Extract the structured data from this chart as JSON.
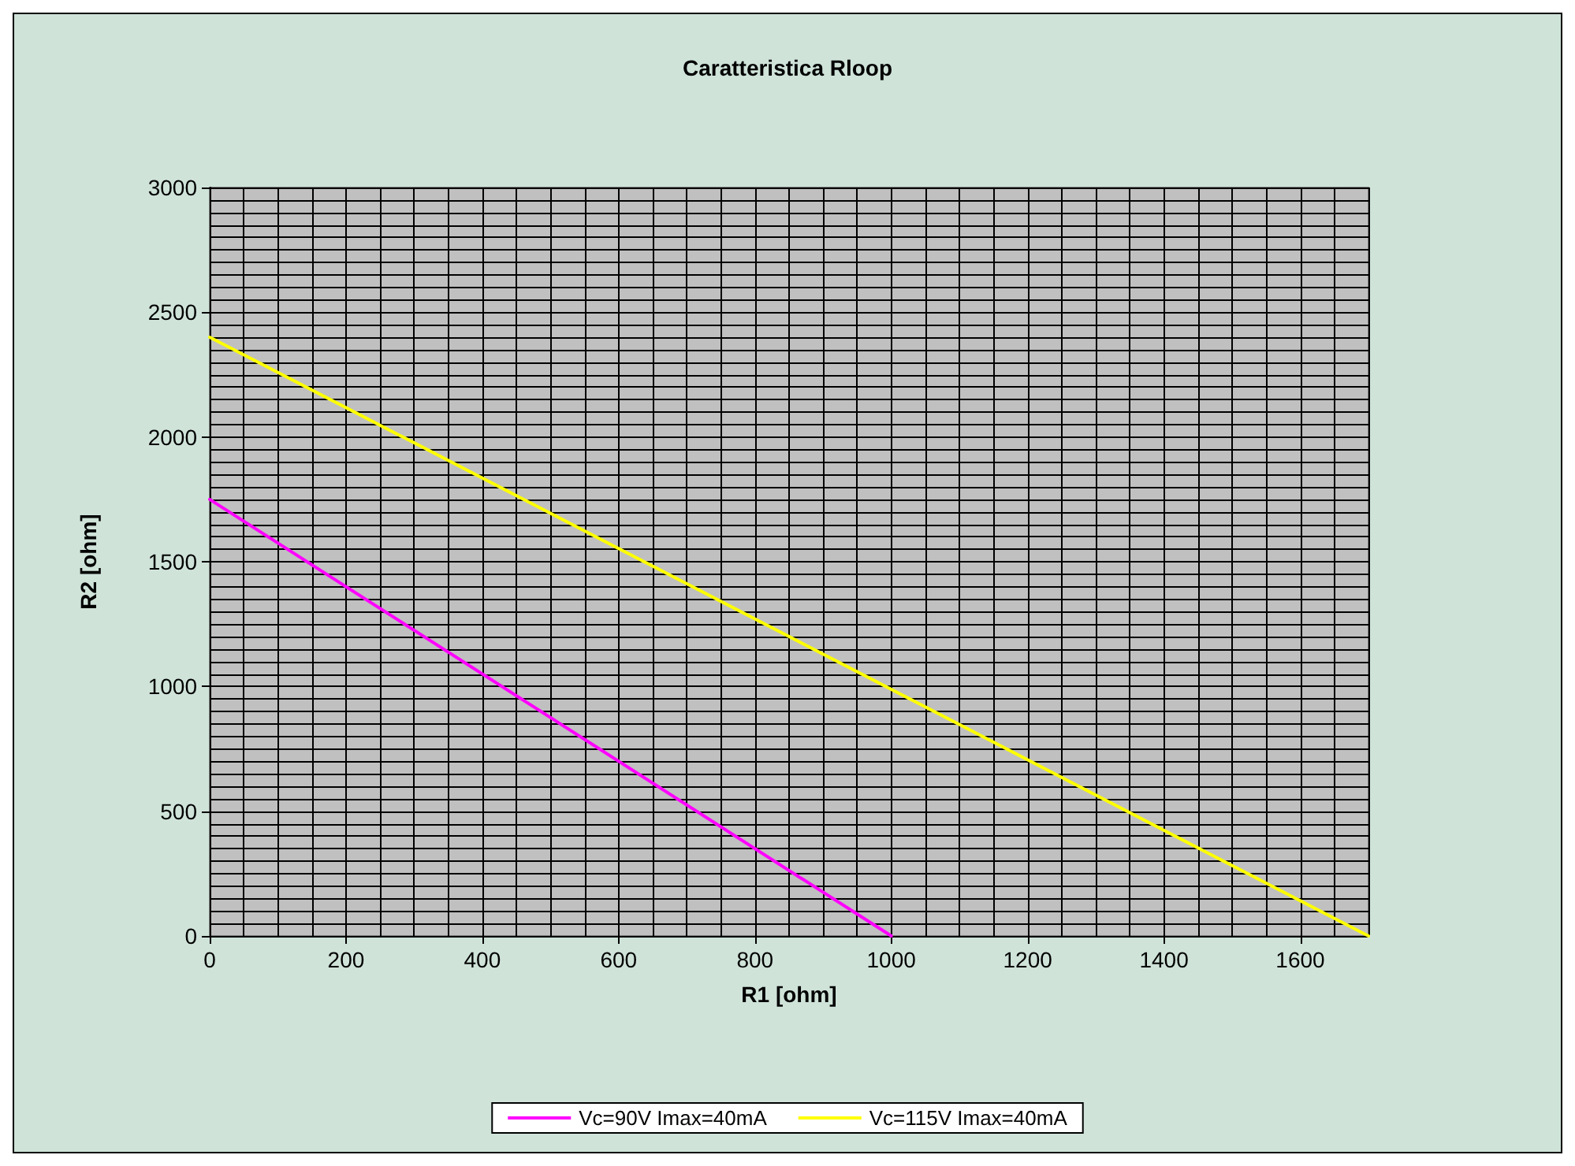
{
  "chart_data": {
    "type": "line",
    "title": "Caratteristica Rloop",
    "xlabel": "R1 [ohm]",
    "ylabel": "R2 [ohm]",
    "series": [
      {
        "name": "Vc=90V Imax=40mA",
        "color": "#ff00ff",
        "x": [
          0,
          1000
        ],
        "values": [
          1750,
          0
        ]
      },
      {
        "name": "Vc=115V Imax=40mA",
        "color": "#ffff00",
        "x": [
          0,
          1700
        ],
        "values": [
          2400,
          0
        ]
      }
    ],
    "xlim": [
      0,
      1700
    ],
    "xticks": [
      0,
      200,
      400,
      600,
      800,
      1000,
      1200,
      1400,
      1600
    ],
    "ylim": [
      0,
      3000
    ],
    "yticks": [
      0,
      500,
      1000,
      1500,
      2000,
      2500,
      3000
    ],
    "grid": true,
    "legend": "bottom",
    "marker": "none",
    "line_style": "solid"
  }
}
